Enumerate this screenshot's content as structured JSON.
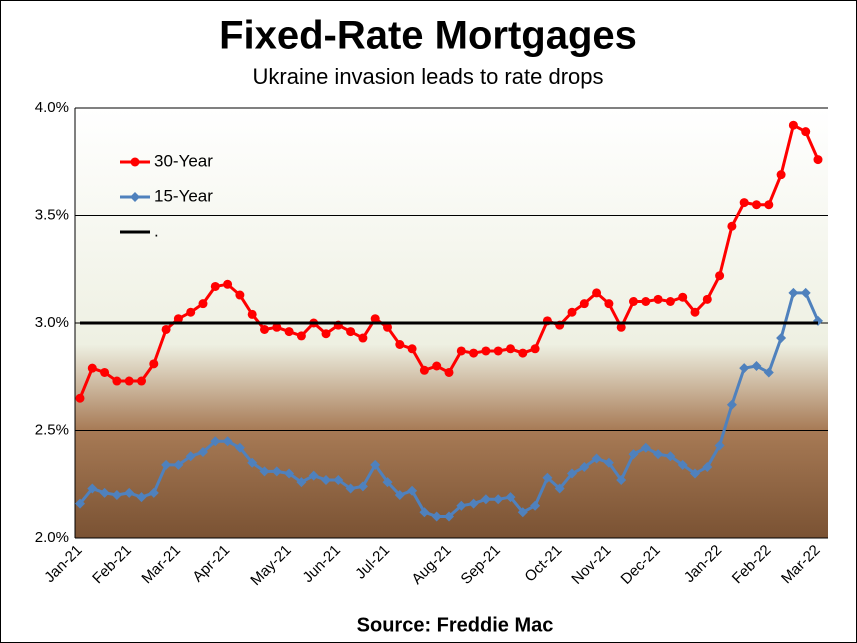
{
  "chart_data": {
    "type": "line",
    "title": "Fixed-Rate Mortgages",
    "subtitle": "Ukraine invasion leads to rate drops",
    "source": "Source: Freddie Mac",
    "categories": [
      "Jan-21",
      null,
      null,
      null,
      "Feb-21",
      null,
      null,
      null,
      "Mar-21",
      null,
      null,
      null,
      "Apr-21",
      null,
      null,
      null,
      null,
      "May-21",
      null,
      null,
      null,
      "Jun-21",
      null,
      null,
      null,
      "Jul-21",
      null,
      null,
      null,
      null,
      "Aug-21",
      null,
      null,
      null,
      "Sep-21",
      null,
      null,
      null,
      null,
      "Oct-21",
      null,
      null,
      null,
      "Nov-21",
      null,
      null,
      null,
      "Dec-21",
      null,
      null,
      null,
      null,
      "Jan-22",
      null,
      null,
      null,
      "Feb-22",
      null,
      null,
      null,
      "Mar-22"
    ],
    "series": [
      {
        "name": "30-Year",
        "color": "#ff0000",
        "marker": "circle",
        "values": [
          2.65,
          2.79,
          2.77,
          2.73,
          2.73,
          2.73,
          2.81,
          2.97,
          3.02,
          3.05,
          3.09,
          3.17,
          3.18,
          3.13,
          3.04,
          2.97,
          2.98,
          2.96,
          2.94,
          3.0,
          2.95,
          2.99,
          2.96,
          2.93,
          3.02,
          2.98,
          2.9,
          2.88,
          2.78,
          2.8,
          2.77,
          2.87,
          2.86,
          2.87,
          2.87,
          2.88,
          2.86,
          2.88,
          3.01,
          2.99,
          3.05,
          3.09,
          3.14,
          3.09,
          2.98,
          3.1,
          3.1,
          3.11,
          3.1,
          3.12,
          3.05,
          3.11,
          3.22,
          3.45,
          3.56,
          3.55,
          3.55,
          3.69,
          3.92,
          3.89,
          3.76
        ]
      },
      {
        "name": "15-Year",
        "color": "#4f81bd",
        "marker": "diamond",
        "values": [
          2.16,
          2.23,
          2.21,
          2.2,
          2.21,
          2.19,
          2.21,
          2.34,
          2.34,
          2.38,
          2.4,
          2.45,
          2.45,
          2.42,
          2.35,
          2.31,
          2.31,
          2.3,
          2.26,
          2.29,
          2.27,
          2.27,
          2.23,
          2.24,
          2.34,
          2.26,
          2.2,
          2.22,
          2.12,
          2.1,
          2.1,
          2.15,
          2.16,
          2.18,
          2.18,
          2.19,
          2.12,
          2.15,
          2.28,
          2.23,
          2.3,
          2.33,
          2.37,
          2.35,
          2.27,
          2.39,
          2.42,
          2.39,
          2.38,
          2.34,
          2.3,
          2.33,
          2.43,
          2.62,
          2.79,
          2.8,
          2.77,
          2.93,
          3.14,
          3.14,
          3.01
        ]
      },
      {
        "name": ".",
        "color": "#000000",
        "values": [
          3.0,
          3.0,
          3.0,
          3.0,
          3.0,
          3.0,
          3.0,
          3.0,
          3.0,
          3.0,
          3.0,
          3.0,
          3.0,
          3.0,
          3.0,
          3.0,
          3.0,
          3.0,
          3.0,
          3.0,
          3.0,
          3.0,
          3.0,
          3.0,
          3.0,
          3.0,
          3.0,
          3.0,
          3.0,
          3.0,
          3.0,
          3.0,
          3.0,
          3.0,
          3.0,
          3.0,
          3.0,
          3.0,
          3.0,
          3.0,
          3.0,
          3.0,
          3.0,
          3.0,
          3.0,
          3.0,
          3.0,
          3.0,
          3.0,
          3.0,
          3.0,
          3.0,
          3.0,
          3.0,
          3.0,
          3.0,
          3.0,
          3.0,
          3.0,
          3.0,
          3.0
        ]
      }
    ],
    "ylim": [
      2.0,
      4.0
    ],
    "yticks": [
      {
        "value": 2.0,
        "label": "2.0%"
      },
      {
        "value": 2.5,
        "label": "2.5%"
      },
      {
        "value": 3.0,
        "label": "3.0%"
      },
      {
        "value": 3.5,
        "label": "3.5%"
      },
      {
        "value": 4.0,
        "label": "4.0%"
      }
    ],
    "grid": true,
    "legend": "upper left"
  }
}
